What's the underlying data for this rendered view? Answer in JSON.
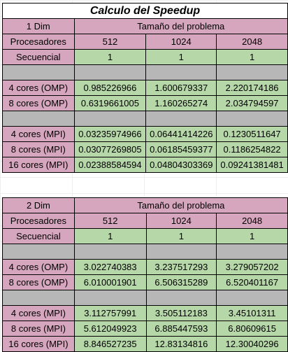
{
  "title": "Calculo del Speedup",
  "table1": {
    "dim_label": "1 Dim",
    "problem_label": "Tamaño del problema",
    "proc_label": "Procesadores",
    "sizes": [
      "512",
      "1024",
      "2048"
    ],
    "sequential": {
      "label": "Secuencial",
      "values": [
        "1",
        "1",
        "1"
      ]
    },
    "omp": [
      {
        "label": "4 cores (OMP)",
        "values": [
          "0.985226966",
          "1.600679337",
          "2.220174186"
        ]
      },
      {
        "label": "8 cores (OMP)",
        "values": [
          "0.6319661005",
          "1.160265274",
          "2.034794597"
        ]
      }
    ],
    "mpi": [
      {
        "label": "4 cores (MPI)",
        "values": [
          "0.03235974966",
          "0.06441414226",
          "0.1230511647"
        ]
      },
      {
        "label": "8 cores (MPI)",
        "values": [
          "0.03077269805",
          "0.06185459377",
          "0.1186254822"
        ]
      },
      {
        "label": "16 cores (MPI)",
        "values": [
          "0.02388584594",
          "0.04804303369",
          "0.09241381481"
        ]
      }
    ]
  },
  "table2": {
    "dim_label": "2 Dim",
    "problem_label": "Tamaño del problema",
    "proc_label": "Procesadores",
    "sizes": [
      "512",
      "1024",
      "2048"
    ],
    "sequential": {
      "label": "Secuencial",
      "values": [
        "1",
        "1",
        "1"
      ]
    },
    "omp": [
      {
        "label": "4 cores (OMP)",
        "values": [
          "3.022740383",
          "3.237517293",
          "3.279057202"
        ]
      },
      {
        "label": "8 cores (OMP)",
        "values": [
          "6.010001901",
          "6.506315289",
          "6.520401167"
        ]
      }
    ],
    "mpi": [
      {
        "label": "4 cores (MPI)",
        "values": [
          "3.112757991",
          "3.505112183",
          "3.45101311"
        ]
      },
      {
        "label": "8 cores (MPI)",
        "values": [
          "5.612049923",
          "6.885447593",
          "6.80609615"
        ]
      },
      {
        "label": "16 cores (MPI)",
        "values": [
          "8.846527235",
          "12.83134816",
          "12.30040296"
        ]
      }
    ]
  }
}
